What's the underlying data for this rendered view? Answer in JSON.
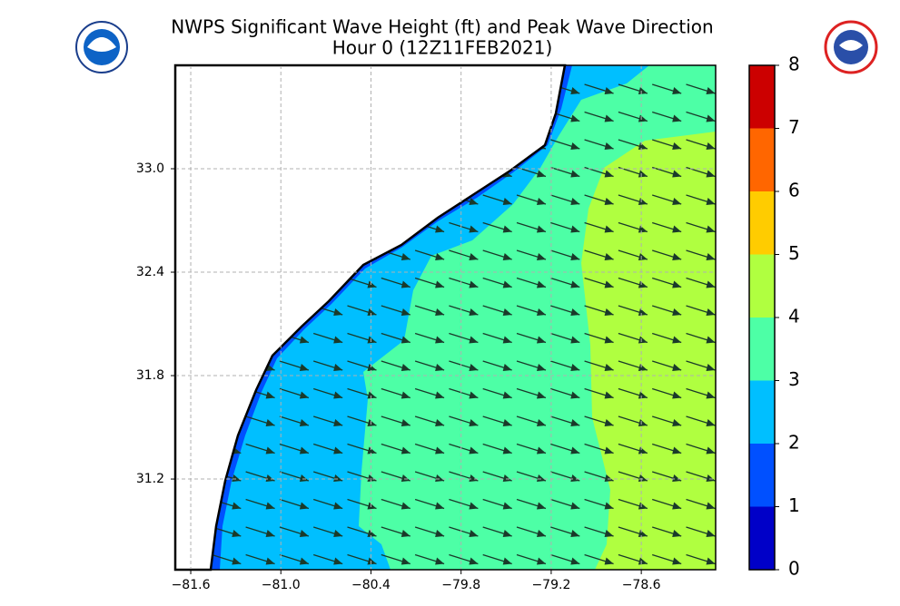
{
  "chart_data": {
    "type": "map",
    "title": "NWPS Significant Wave Height (ft) and Peak Wave Direction",
    "subtitle": "Hour 0 (12Z11FEB2021)",
    "xlim": [
      -81.703,
      -78.105
    ],
    "ylim": [
      30.674,
      33.6
    ],
    "xticks": [
      {
        "value": -81.6,
        "label": "−81.6"
      },
      {
        "value": -81.0,
        "label": "−81.0"
      },
      {
        "value": -80.4,
        "label": "−80.4"
      },
      {
        "value": -79.8,
        "label": "−79.8"
      },
      {
        "value": -79.2,
        "label": "−79.2"
      },
      {
        "value": -78.6,
        "label": "−78.6"
      }
    ],
    "yticks": [
      {
        "value": 31.2,
        "label": "31.2"
      },
      {
        "value": 31.8,
        "label": "31.8"
      },
      {
        "value": 32.4,
        "label": "32.4"
      },
      {
        "value": 33.0,
        "label": "33.0"
      }
    ],
    "grid": true,
    "colorbar": {
      "lim": [
        0,
        8
      ],
      "ticks": [
        0,
        1,
        2,
        3,
        4,
        5,
        6,
        7,
        8
      ],
      "colors": [
        "#0000c8",
        "#0050ff",
        "#00bfff",
        "#4dffa6",
        "#b0ff40",
        "#ffcc00",
        "#ff6600",
        "#cc0000"
      ]
    }
  }
}
